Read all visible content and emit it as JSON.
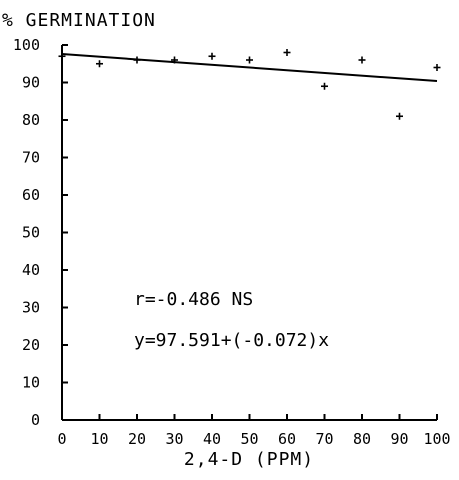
{
  "chart_data": {
    "type": "scatter",
    "title": "",
    "ylabel": "% GERMINATION",
    "xlabel": "2,4-D (PPM)",
    "xlim": [
      0,
      100
    ],
    "ylim": [
      0,
      100
    ],
    "x_ticks": [
      0,
      10,
      20,
      30,
      40,
      50,
      60,
      70,
      80,
      90,
      100
    ],
    "y_ticks": [
      0,
      10,
      20,
      30,
      40,
      50,
      60,
      70,
      80,
      90,
      100
    ],
    "grid": false,
    "legend": "none",
    "marker": "+",
    "color": "#000000",
    "points": [
      {
        "x": 0,
        "y": 97
      },
      {
        "x": 10,
        "y": 95
      },
      {
        "x": 20,
        "y": 96
      },
      {
        "x": 30,
        "y": 96
      },
      {
        "x": 40,
        "y": 97
      },
      {
        "x": 50,
        "y": 96
      },
      {
        "x": 60,
        "y": 98
      },
      {
        "x": 70,
        "y": 89
      },
      {
        "x": 80,
        "y": 96
      },
      {
        "x": 90,
        "y": 81
      },
      {
        "x": 100,
        "y": 94
      }
    ],
    "regression": {
      "intercept": 97.591,
      "slope": -0.072
    },
    "annotations": {
      "r_text": "r=-0.486 NS",
      "equation_text": "y=97.591+(-0.072)x"
    }
  }
}
